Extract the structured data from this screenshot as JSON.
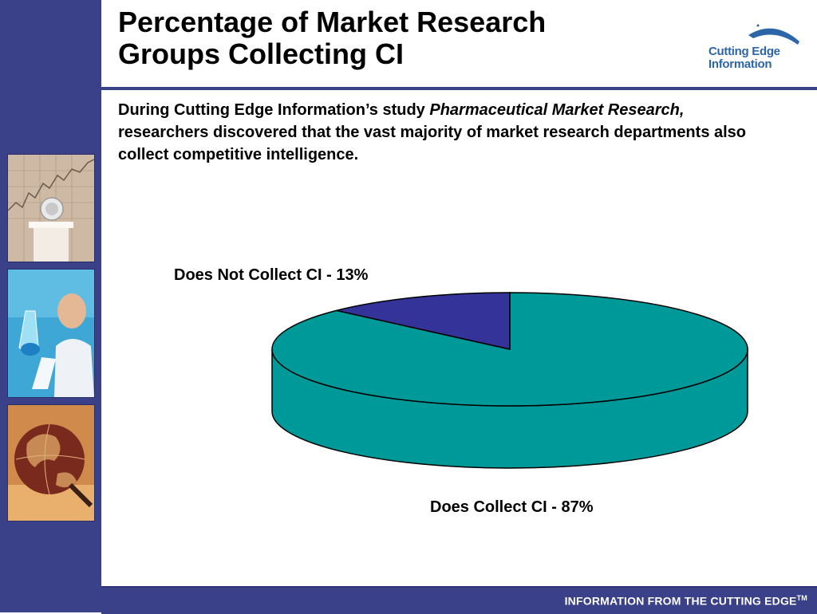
{
  "slide": {
    "title_line1": "Percentage of Market Research",
    "title_line2": "Groups Collecting CI",
    "intro_part1": "During Cutting Edge Information’s study ",
    "intro_italic": "Pharmaceutical Market Research,",
    "intro_part2": " researchers discovered that the vast majority of market research departments also collect competitive intelligence."
  },
  "logo": {
    "line1": "Cutting Edge",
    "line2": "Information"
  },
  "footer": {
    "text": "INFORMATION FROM THE CUTTING EDGE",
    "superscript": "TM"
  },
  "colors": {
    "brand_navy": "#3a4189",
    "slice_collect": "#009999",
    "slice_not_collect": "#333399",
    "logo_blue": "#2c66a8"
  },
  "chart_data": {
    "type": "pie",
    "title": "",
    "style": "3d",
    "slices": [
      {
        "label": "Does Not Collect CI - 13%",
        "value": 13,
        "color": "#333399"
      },
      {
        "label": "Does Collect CI - 87%",
        "value": 87,
        "color": "#009999"
      }
    ]
  }
}
